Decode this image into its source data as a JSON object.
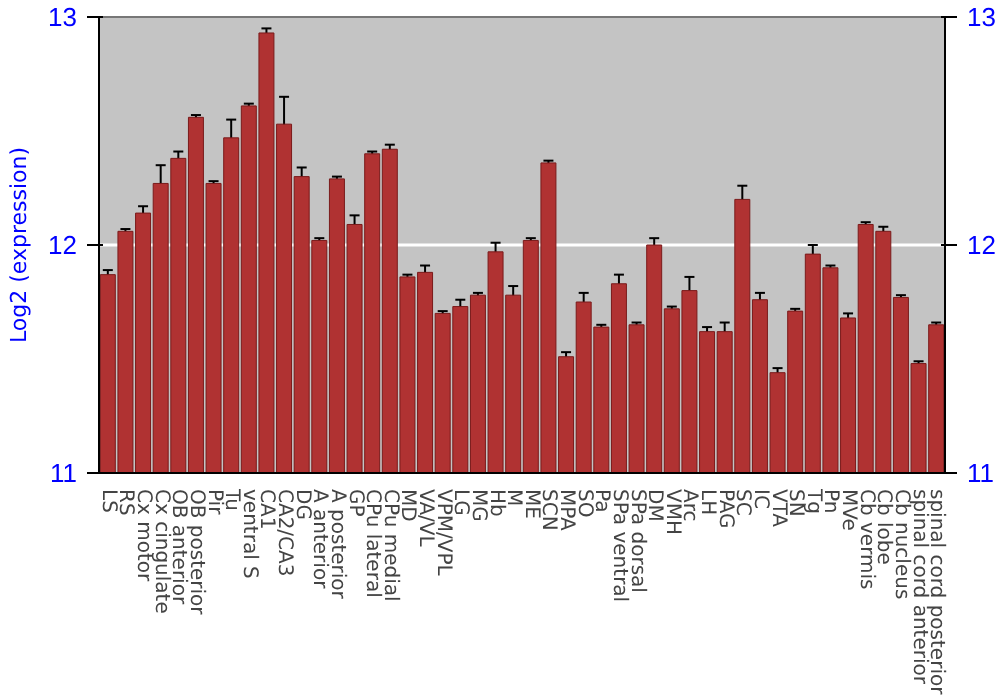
{
  "chart_data": {
    "type": "bar",
    "ylabel": "Log2 (expression)",
    "categories": [
      "LS",
      "RS",
      "Cx motor",
      "Cx cingulate",
      "OB anterior",
      "OB posterior",
      "Pir",
      "Tu",
      "ventral S",
      "CA1",
      "CA2/CA3",
      "DG",
      "A anterior",
      "A posterior",
      "GP",
      "CPu lateral",
      "CPu medial",
      "MD",
      "VA/VL",
      "VPM/VPL",
      "LG",
      "MG",
      "Hb",
      "M",
      "ME",
      "SCN",
      "MPA",
      "SO",
      "Pa",
      "SPa ventral",
      "SPa dorsal",
      "DM",
      "VMH",
      "Arc",
      "LH",
      "PAG",
      "SC",
      "IC",
      "VTA",
      "SN",
      "Tg",
      "Pn",
      "MVe",
      "Cb vermis",
      "Cb lobe",
      "Cb nucleus",
      "spinal cord anterior",
      "spinal cord posterior"
    ],
    "values": [
      11.87,
      12.06,
      12.14,
      12.27,
      12.38,
      12.56,
      12.27,
      12.47,
      12.61,
      12.93,
      12.53,
      12.3,
      12.02,
      12.29,
      12.09,
      12.4,
      12.42,
      11.86,
      11.88,
      11.7,
      11.73,
      11.78,
      11.97,
      11.78,
      12.02,
      12.36,
      11.51,
      11.75,
      11.64,
      11.83,
      11.65,
      12.0,
      11.72,
      11.8,
      11.62,
      11.62,
      12.2,
      11.76,
      11.44,
      11.71,
      11.96,
      11.9,
      11.68,
      12.09,
      12.06,
      11.77,
      11.48,
      11.65
    ],
    "errors": [
      0.02,
      0.01,
      0.03,
      0.08,
      0.03,
      0.01,
      0.01,
      0.08,
      0.01,
      0.02,
      0.12,
      0.04,
      0.01,
      0.01,
      0.04,
      0.01,
      0.02,
      0.01,
      0.03,
      0.01,
      0.03,
      0.01,
      0.04,
      0.04,
      0.01,
      0.01,
      0.02,
      0.04,
      0.01,
      0.04,
      0.01,
      0.03,
      0.01,
      0.06,
      0.02,
      0.04,
      0.06,
      0.03,
      0.02,
      0.01,
      0.04,
      0.01,
      0.02,
      0.01,
      0.02,
      0.01,
      0.01,
      0.01
    ],
    "color": "#b03232",
    "ylim": [
      11,
      13
    ],
    "yticks": [
      11,
      12,
      13
    ],
    "y2lim": [
      11,
      13
    ],
    "y2ticks": [
      11,
      12,
      13
    ],
    "grid": "y"
  }
}
